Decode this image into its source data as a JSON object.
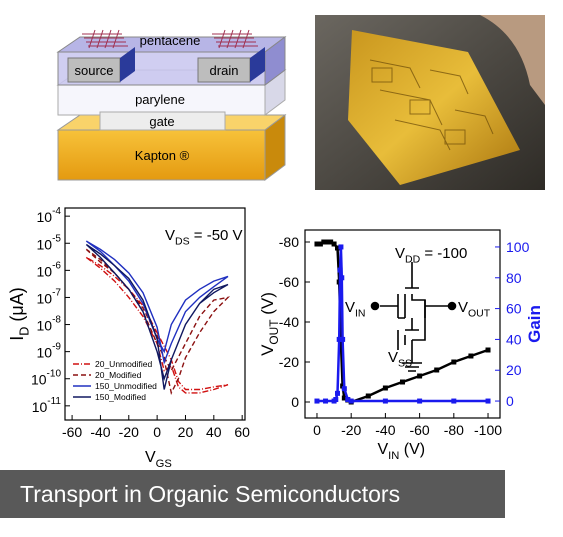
{
  "device": {
    "layers": [
      "pentacene",
      "source",
      "drain",
      "parylene",
      "gate",
      "Kapton ®"
    ]
  },
  "caption": "Transport in Organic Semiconductors",
  "chart_data": [
    {
      "type": "line",
      "log_y": true,
      "ylabel": {
        "main": "I",
        "sub": "D",
        "rest": " (μA)"
      },
      "xlabel": {
        "main": "V",
        "sub": "GS"
      },
      "annotation": {
        "main": "V",
        "sub": "DS",
        "rest": " = -50 V"
      },
      "xlim": [
        -65,
        62
      ],
      "xticks": [
        -60,
        -40,
        -20,
        0,
        20,
        40,
        60
      ],
      "ylim": [
        3e-12,
        0.0002
      ],
      "yticks": [
        {
          "value": 0.0001,
          "label": "10",
          "superscript": "-4"
        },
        {
          "value": 1e-05,
          "label": "10",
          "superscript": "-5"
        },
        {
          "value": 1e-06,
          "label": "10",
          "superscript": "-6"
        },
        {
          "value": 1e-07,
          "label": "10",
          "superscript": "-7"
        },
        {
          "value": 1e-08,
          "label": "10",
          "superscript": "-8"
        },
        {
          "value": 1e-09,
          "label": "10",
          "superscript": "-9"
        },
        {
          "value": 1e-10,
          "label": "10",
          "superscript": "-10"
        },
        {
          "value": 1e-11,
          "label": "10",
          "superscript": "-11"
        }
      ],
      "legend": "lower left",
      "series": [
        {
          "name": "20_Unmodified",
          "color": "#d01010",
          "dash": "6 2 1 2",
          "x": [
            -50,
            -40,
            -30,
            -20,
            -10,
            0,
            5,
            10,
            15,
            20,
            30,
            40,
            50,
            40,
            30,
            20,
            15,
            10,
            0,
            -10,
            -20,
            -30,
            -40,
            -50
          ],
          "values": [
            3e-06,
            1.2e-06,
            4e-07,
            1e-07,
            2e-08,
            2e-09,
            2e-10,
            3e-10,
            5e-11,
            3e-11,
            3e-11,
            4e-11,
            6e-11,
            5e-11,
            4e-11,
            4e-11,
            8e-11,
            5e-10,
            5e-09,
            5e-08,
            2e-07,
            6e-07,
            1.5e-06,
            3e-06
          ]
        },
        {
          "name": "20_Modified",
          "color": "#8b1010",
          "dash": "5 3",
          "x": [
            -50,
            -40,
            -30,
            -20,
            -10,
            0,
            5,
            10,
            15,
            20,
            30,
            40,
            50,
            40,
            30,
            20,
            10,
            0,
            -10,
            -20,
            -30,
            -40,
            -50
          ],
          "values": [
            6e-06,
            2e-06,
            8e-07,
            2e-07,
            4e-08,
            4e-09,
            5e-10,
            3e-11,
            1e-10,
            6e-10,
            5e-09,
            3e-08,
            1e-07,
            8e-08,
            2e-08,
            2e-09,
            2e-10,
            2e-09,
            3e-08,
            2e-07,
            8e-07,
            2.5e-06,
            6e-06
          ]
        },
        {
          "name": "150_Unmodified",
          "color": "#2030c0",
          "dash": "",
          "x": [
            -50,
            -40,
            -30,
            -20,
            -10,
            0,
            5,
            10,
            20,
            30,
            40,
            50,
            40,
            30,
            20,
            10,
            5,
            0,
            -10,
            -20,
            -30,
            -40,
            -50
          ],
          "values": [
            1.2e-05,
            6e-06,
            2.5e-06,
            8e-07,
            1.5e-07,
            8e-09,
            4e-10,
            2e-09,
            3e-08,
            1e-07,
            2.5e-07,
            6e-07,
            4e-07,
            2e-07,
            8e-08,
            1e-08,
            1e-09,
            3e-09,
            6e-08,
            4e-07,
            1.5e-06,
            5e-06,
            1.2e-05
          ]
        },
        {
          "name": "150_Modified",
          "color": "#101860",
          "dash": "",
          "x": [
            -50,
            -40,
            -30,
            -20,
            -10,
            0,
            5,
            10,
            20,
            30,
            40,
            50,
            40,
            30,
            20,
            10,
            5,
            0,
            -10,
            -20,
            -30,
            -40,
            -50
          ],
          "values": [
            9e-06,
            4e-06,
            1.5e-06,
            5e-07,
            8e-08,
            3e-09,
            4e-11,
            5e-10,
            1e-08,
            6e-08,
            1.5e-07,
            3e-07,
            2e-07,
            6e-08,
            1e-08,
            5e-10,
            1e-10,
            1e-09,
            3e-08,
            2e-07,
            8e-07,
            3e-06,
            9e-06
          ]
        }
      ]
    },
    {
      "type": "line",
      "ylabel": {
        "main": "V",
        "sub": "OUT",
        "rest": " (V)"
      },
      "xlabel": {
        "main": "V",
        "sub": "IN",
        "rest": " (V)"
      },
      "y2label": "Gain",
      "circuit": {
        "vdd": {
          "main": "V",
          "sub": "DD",
          "rest": " = -100"
        },
        "vin": {
          "main": "V",
          "sub": "IN"
        },
        "vout": {
          "main": "V",
          "sub": "OUT"
        },
        "vss": {
          "main": "V",
          "sub": "SS"
        }
      },
      "xlim": [
        7,
        -107
      ],
      "xticks": [
        0,
        -20,
        -40,
        -60,
        -80,
        -100
      ],
      "ylim": [
        8,
        -86
      ],
      "yticks": [
        -80,
        -60,
        -40,
        -20,
        0
      ],
      "y2lim": [
        -11,
        111
      ],
      "y2ticks": [
        0,
        20,
        40,
        60,
        80,
        100
      ],
      "series": [
        {
          "name": "VOUT",
          "color": "#000000",
          "x": [
            0,
            -2,
            -4,
            -6,
            -8,
            -10,
            -12,
            -13,
            -14,
            -15,
            -16,
            -18,
            -20,
            -30,
            -40,
            -50,
            -60,
            -70,
            -80,
            -90,
            -100
          ],
          "values": [
            -79,
            -79,
            -80,
            -80,
            -80,
            -79,
            -77,
            -60,
            -30,
            -8,
            -2,
            -1,
            0,
            -3,
            -7,
            -10,
            -13,
            -16,
            -20,
            -23,
            -26
          ]
        },
        {
          "name": "Gain",
          "color": "#1a1aee",
          "axis": "y2",
          "x": [
            0,
            -5,
            -10,
            -11,
            -12,
            -13,
            -13.5,
            -14,
            -14.5,
            -15,
            -16,
            -18,
            -20,
            -40,
            -60,
            -80,
            -100
          ],
          "values": [
            0,
            0,
            0,
            1,
            5,
            40,
            85,
            100,
            80,
            40,
            8,
            1,
            0,
            0,
            0,
            0,
            0
          ]
        }
      ]
    }
  ]
}
